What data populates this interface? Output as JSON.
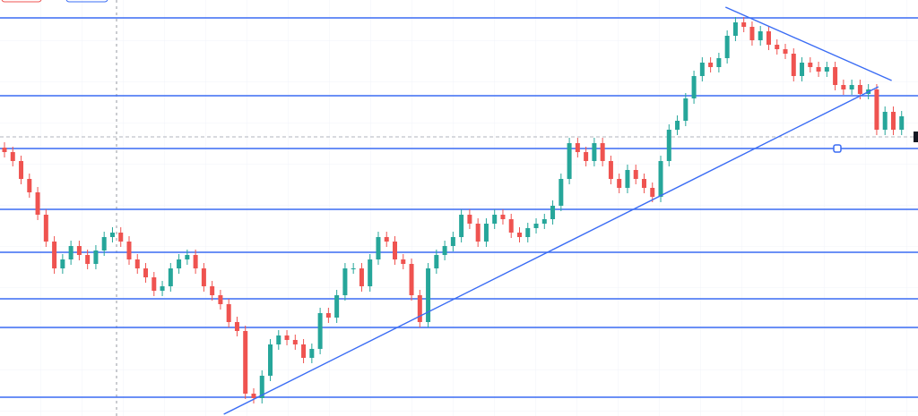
{
  "chart_data": {
    "type": "candlestick",
    "ylim": [
      0,
      465
    ],
    "up_color": "#26a69a",
    "down_color": "#ef5350",
    "line_color": "#3a6cf4",
    "grid": true,
    "open": [
      300,
      295,
      285,
      265,
      250,
      225,
      195,
      165,
      175,
      190,
      180,
      170,
      185,
      200,
      205,
      195,
      175,
      165,
      155,
      140,
      145,
      165,
      175,
      180,
      165,
      145,
      135,
      125,
      105,
      95,
      25,
      20,
      45,
      80,
      90,
      85,
      80,
      65,
      75,
      115,
      110,
      135,
      165,
      165,
      145,
      175,
      200,
      195,
      175,
      170,
      135,
      105,
      165,
      180,
      190,
      200,
      225,
      215,
      195,
      215,
      225,
      220,
      205,
      200,
      210,
      215,
      220,
      235,
      265,
      305,
      295,
      285,
      305,
      285,
      265,
      255,
      275,
      265,
      255,
      245,
      285,
      320,
      330,
      355,
      380,
      395,
      390,
      400,
      425,
      440,
      435,
      420,
      430,
      415,
      410,
      405,
      380,
      395,
      390,
      385,
      390,
      370,
      365,
      370,
      360,
      365,
      320,
      340,
      320
    ],
    "high": [
      306,
      301,
      291,
      271,
      256,
      231,
      201,
      181,
      196,
      196,
      186,
      191,
      206,
      211,
      211,
      201,
      181,
      171,
      161,
      151,
      171,
      181,
      186,
      186,
      171,
      151,
      141,
      131,
      111,
      101,
      31,
      51,
      86,
      96,
      96,
      91,
      86,
      81,
      121,
      121,
      141,
      171,
      171,
      171,
      181,
      206,
      206,
      201,
      181,
      176,
      141,
      171,
      186,
      196,
      206,
      231,
      231,
      221,
      221,
      231,
      231,
      226,
      211,
      216,
      221,
      226,
      241,
      271,
      311,
      311,
      301,
      311,
      311,
      291,
      271,
      281,
      281,
      271,
      261,
      291,
      326,
      336,
      361,
      386,
      401,
      401,
      406,
      431,
      446,
      446,
      441,
      436,
      436,
      421,
      416,
      411,
      401,
      401,
      396,
      396,
      396,
      376,
      376,
      376,
      371,
      371,
      346,
      346,
      341
    ],
    "low": [
      289,
      279,
      259,
      244,
      219,
      189,
      159,
      159,
      169,
      174,
      164,
      164,
      179,
      194,
      189,
      169,
      159,
      149,
      134,
      134,
      139,
      159,
      169,
      159,
      139,
      129,
      119,
      99,
      89,
      19,
      14,
      14,
      39,
      74,
      79,
      74,
      59,
      59,
      69,
      104,
      104,
      129,
      159,
      139,
      139,
      169,
      189,
      169,
      164,
      129,
      99,
      99,
      159,
      174,
      184,
      194,
      209,
      189,
      189,
      209,
      214,
      199,
      194,
      194,
      204,
      209,
      214,
      229,
      259,
      289,
      279,
      279,
      279,
      259,
      249,
      249,
      259,
      249,
      239,
      239,
      279,
      314,
      324,
      349,
      374,
      384,
      384,
      394,
      419,
      429,
      414,
      414,
      409,
      404,
      399,
      374,
      374,
      384,
      379,
      379,
      364,
      359,
      359,
      354,
      354,
      314,
      314,
      314,
      314
    ],
    "close": [
      295,
      285,
      265,
      250,
      225,
      195,
      165,
      175,
      190,
      180,
      170,
      185,
      200,
      205,
      195,
      175,
      165,
      155,
      140,
      145,
      165,
      175,
      180,
      165,
      145,
      135,
      125,
      105,
      95,
      25,
      20,
      45,
      80,
      90,
      85,
      80,
      65,
      75,
      115,
      110,
      135,
      165,
      165,
      145,
      175,
      200,
      195,
      175,
      170,
      135,
      105,
      165,
      180,
      190,
      200,
      225,
      215,
      195,
      215,
      225,
      220,
      205,
      200,
      210,
      215,
      220,
      235,
      265,
      305,
      295,
      285,
      305,
      285,
      265,
      255,
      275,
      265,
      255,
      245,
      285,
      320,
      330,
      355,
      380,
      395,
      390,
      400,
      425,
      440,
      435,
      420,
      430,
      415,
      410,
      405,
      380,
      395,
      390,
      385,
      390,
      370,
      365,
      370,
      360,
      365,
      320,
      340,
      320,
      335
    ],
    "levels": [
      445,
      358,
      299,
      231,
      183,
      131,
      99,
      21
    ],
    "price_line": 312,
    "trend_lines": [
      [
        [
          26.4,
          2
        ],
        [
          105.2,
          368
        ]
      ],
      [
        [
          86.8,
          457
        ],
        [
          106.8,
          375
        ]
      ]
    ]
  }
}
